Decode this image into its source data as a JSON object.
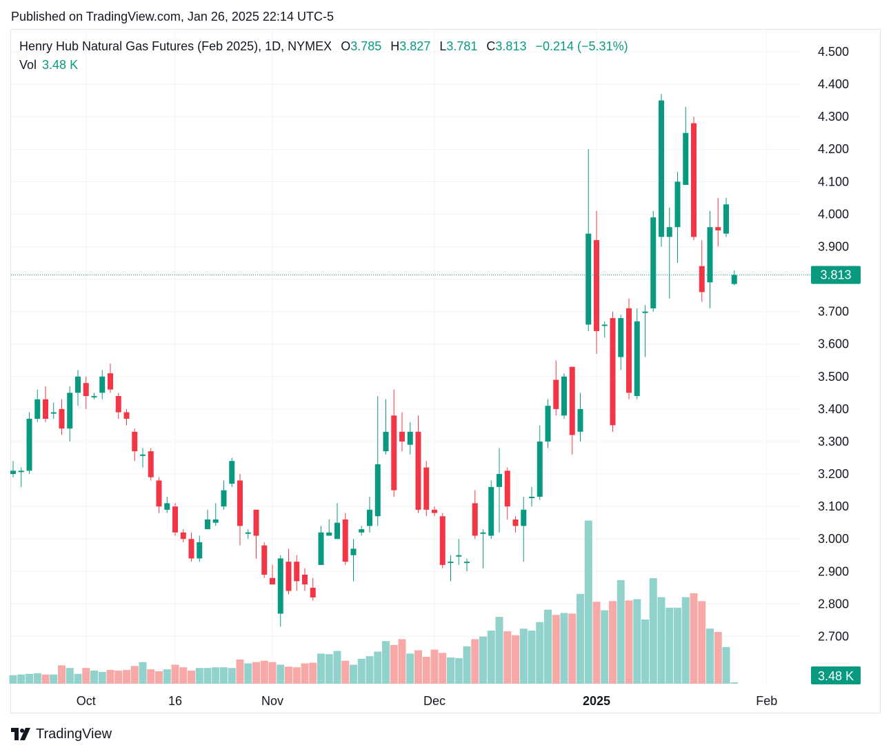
{
  "header": {
    "published": "Published on TradingView.com, Jan 26, 2025 22:14 UTC-5"
  },
  "legend": {
    "title": "Henry Hub Natural Gas Futures (Feb 2025), 1D, NYMEX",
    "o_label": "O",
    "o": "3.785",
    "h_label": "H",
    "h": "3.827",
    "l_label": "L",
    "l": "3.781",
    "c_label": "C",
    "c": "3.813",
    "change": "−0.214 (−5.31%)",
    "vol_label": "Vol",
    "vol": "3.48 K"
  },
  "footer": {
    "brand": "TradingView",
    "logo_icon": "tradingview-logo-icon"
  },
  "colors": {
    "up": "#089981",
    "down": "#f23645",
    "up_vol": "#92d2cc",
    "down_vol": "#f7a9a7",
    "grid": "#f0f3fa"
  },
  "chart_data": {
    "type": "candlestick",
    "ylim": [
      2.6,
      4.55
    ],
    "yticks": [
      2.7,
      2.8,
      2.9,
      3.0,
      3.1,
      3.2,
      3.3,
      3.4,
      3.5,
      3.6,
      3.7,
      3.8,
      3.9,
      4.0,
      4.1,
      4.2,
      4.3,
      4.4,
      4.5
    ],
    "ytick_labels": [
      "2.700",
      "2.800",
      "2.900",
      "3.000",
      "3.100",
      "3.200",
      "3.300",
      "3.400",
      "3.500",
      "3.600",
      "3.700",
      "3.800",
      "3.900",
      "4.000",
      "4.100",
      "4.200",
      "4.300",
      "4.400",
      "4.500"
    ],
    "last_price": 3.813,
    "last_price_label": "3.813",
    "last_volume_label": "3.48 K",
    "x_labels": [
      {
        "label": "Oct",
        "index": 9,
        "bold": false
      },
      {
        "label": "16",
        "index": 20,
        "bold": false
      },
      {
        "label": "Nov",
        "index": 32,
        "bold": false
      },
      {
        "label": "Dec",
        "index": 52,
        "bold": false
      },
      {
        "label": "2025",
        "index": 72,
        "bold": true
      },
      {
        "label": "Feb",
        "index": 93,
        "bold": false
      }
    ],
    "candles": [
      [
        3.2,
        3.21,
        3.24,
        3.19,
        0.13
      ],
      [
        3.21,
        3.21,
        3.22,
        3.16,
        0.14
      ],
      [
        3.21,
        3.37,
        3.39,
        3.2,
        0.15
      ],
      [
        3.37,
        3.43,
        3.46,
        3.36,
        0.16
      ],
      [
        3.43,
        3.37,
        3.47,
        3.36,
        0.14
      ],
      [
        3.39,
        3.39,
        3.42,
        3.37,
        0.14
      ],
      [
        3.4,
        3.34,
        3.43,
        3.32,
        0.28
      ],
      [
        3.34,
        3.45,
        3.47,
        3.3,
        0.24
      ],
      [
        3.45,
        3.5,
        3.52,
        3.41,
        0.15
      ],
      [
        3.48,
        3.44,
        3.5,
        3.4,
        0.24
      ],
      [
        3.44,
        3.44,
        3.45,
        3.43,
        0.2
      ],
      [
        3.45,
        3.5,
        3.52,
        3.43,
        0.18
      ],
      [
        3.51,
        3.46,
        3.54,
        3.45,
        0.21
      ],
      [
        3.44,
        3.39,
        3.45,
        3.37,
        0.2
      ],
      [
        3.39,
        3.37,
        3.4,
        3.35,
        0.21
      ],
      [
        3.33,
        3.27,
        3.34,
        3.24,
        0.27
      ],
      [
        3.26,
        3.26,
        3.28,
        3.22,
        0.33
      ],
      [
        3.27,
        3.19,
        3.28,
        3.18,
        0.22
      ],
      [
        3.18,
        3.1,
        3.19,
        3.08,
        0.19
      ],
      [
        3.09,
        3.11,
        3.13,
        3.08,
        0.22
      ],
      [
        3.1,
        3.02,
        3.11,
        3.01,
        0.29
      ],
      [
        3.02,
        3.0,
        3.03,
        2.99,
        0.25
      ],
      [
        3.0,
        2.94,
        3.02,
        2.93,
        0.2
      ],
      [
        2.94,
        2.99,
        3.01,
        2.93,
        0.24
      ],
      [
        3.03,
        3.06,
        3.09,
        3.03,
        0.24
      ],
      [
        3.05,
        3.06,
        3.11,
        3.04,
        0.25
      ],
      [
        3.1,
        3.15,
        3.18,
        3.09,
        0.25
      ],
      [
        3.17,
        3.24,
        3.25,
        3.16,
        0.24
      ],
      [
        3.18,
        3.04,
        3.2,
        2.98,
        0.37
      ],
      [
        3.02,
        3.02,
        3.03,
        3.0,
        0.31
      ],
      [
        3.09,
        3.01,
        3.09,
        2.94,
        0.33
      ],
      [
        2.98,
        2.89,
        2.99,
        2.88,
        0.35
      ],
      [
        2.88,
        2.86,
        2.92,
        2.86,
        0.33
      ],
      [
        2.77,
        2.94,
        2.95,
        2.73,
        0.29
      ],
      [
        2.93,
        2.84,
        2.97,
        2.83,
        0.26
      ],
      [
        2.93,
        2.87,
        2.95,
        2.84,
        0.25
      ],
      [
        2.89,
        2.86,
        2.91,
        2.84,
        0.31
      ],
      [
        2.85,
        2.82,
        2.88,
        2.81,
        0.32
      ],
      [
        2.92,
        3.02,
        3.04,
        2.92,
        0.46
      ],
      [
        3.01,
        3.02,
        3.06,
        3.01,
        0.45
      ],
      [
        3.0,
        3.05,
        3.11,
        3.0,
        0.5
      ],
      [
        3.06,
        2.93,
        3.08,
        2.92,
        0.35
      ],
      [
        2.95,
        2.97,
        3.0,
        2.87,
        0.29
      ],
      [
        3.02,
        3.03,
        3.04,
        3.01,
        0.38
      ],
      [
        3.04,
        3.09,
        3.13,
        3.02,
        0.42
      ],
      [
        3.07,
        3.23,
        3.44,
        3.04,
        0.49
      ],
      [
        3.27,
        3.33,
        3.43,
        3.26,
        0.65
      ],
      [
        3.38,
        3.15,
        3.46,
        3.13,
        0.59
      ],
      [
        3.33,
        3.3,
        3.39,
        3.27,
        0.68
      ],
      [
        3.29,
        3.33,
        3.36,
        3.26,
        0.46
      ],
      [
        3.33,
        3.09,
        3.38,
        3.08,
        0.51
      ],
      [
        3.22,
        3.09,
        3.24,
        3.07,
        0.41
      ],
      [
        3.09,
        3.08,
        3.1,
        3.07,
        0.52
      ],
      [
        3.07,
        2.92,
        3.08,
        2.91,
        0.47
      ],
      [
        2.93,
        2.93,
        2.95,
        2.87,
        0.4
      ],
      [
        2.95,
        2.95,
        3.0,
        2.92,
        0.39
      ],
      [
        2.93,
        2.93,
        2.94,
        2.9,
        0.57
      ],
      [
        3.11,
        3.01,
        3.15,
        3.0,
        0.68
      ],
      [
        3.02,
        3.02,
        3.03,
        2.91,
        0.72
      ],
      [
        3.01,
        3.16,
        3.18,
        3.0,
        0.81
      ],
      [
        3.16,
        3.2,
        3.28,
        3.02,
        1.02
      ],
      [
        3.21,
        3.1,
        3.22,
        3.06,
        0.8
      ],
      [
        3.06,
        3.04,
        3.07,
        3.02,
        0.74
      ],
      [
        3.04,
        3.09,
        3.13,
        2.93,
        0.84
      ],
      [
        3.13,
        3.13,
        3.16,
        3.1,
        0.81
      ],
      [
        3.13,
        3.3,
        3.35,
        3.12,
        0.94
      ],
      [
        3.3,
        3.41,
        3.43,
        3.28,
        1.13
      ],
      [
        3.49,
        3.4,
        3.55,
        3.38,
        1.05
      ],
      [
        3.38,
        3.5,
        3.51,
        3.37,
        1.08
      ],
      [
        3.53,
        3.32,
        3.53,
        3.26,
        1.07
      ],
      [
        3.33,
        3.4,
        3.45,
        3.3,
        1.37
      ],
      [
        3.66,
        3.94,
        4.2,
        3.64,
        2.49
      ],
      [
        3.92,
        3.64,
        4.01,
        3.57,
        1.25
      ],
      [
        3.66,
        3.66,
        3.67,
        3.62,
        1.12
      ],
      [
        3.68,
        3.35,
        3.7,
        3.33,
        1.26
      ],
      [
        3.56,
        3.68,
        3.69,
        3.52,
        1.58
      ],
      [
        3.71,
        3.45,
        3.74,
        3.43,
        1.27
      ],
      [
        3.44,
        3.67,
        3.71,
        3.43,
        1.29
      ],
      [
        3.7,
        3.7,
        3.72,
        3.56,
        0.98
      ],
      [
        3.71,
        3.99,
        4.01,
        3.7,
        1.61
      ],
      [
        3.93,
        4.35,
        4.37,
        3.9,
        1.32
      ],
      [
        3.93,
        3.96,
        4.02,
        3.74,
        1.16
      ],
      [
        3.96,
        4.1,
        4.13,
        3.85,
        1.16
      ],
      [
        4.09,
        4.25,
        4.33,
        4.09,
        1.32
      ],
      [
        4.28,
        3.93,
        4.3,
        3.92,
        1.38
      ],
      [
        3.84,
        3.76,
        3.92,
        3.73,
        1.26
      ],
      [
        3.79,
        3.96,
        4.01,
        3.71,
        0.84
      ],
      [
        3.96,
        3.95,
        4.05,
        3.9,
        0.79
      ],
      [
        3.94,
        4.03,
        4.05,
        3.93,
        0.56
      ],
      [
        3.785,
        3.813,
        3.827,
        3.781,
        0.02
      ]
    ]
  }
}
